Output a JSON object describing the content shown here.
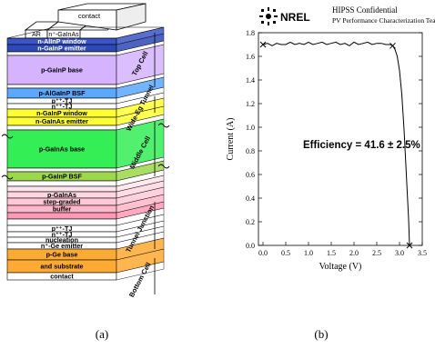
{
  "panel_a": {
    "caption": "(a)",
    "top_labels": {
      "contact": "contact",
      "ar": "AR",
      "cap": "n⁺-GaInAs"
    },
    "layers": [
      {
        "label": "n-AlInP window",
        "fill": "#3a55c8",
        "text": "#ffffff",
        "h": 7
      },
      {
        "label": "n-GaInP emitter",
        "fill": "#2f48b8",
        "text": "#ffffff",
        "h": 8
      },
      {
        "label": "",
        "fill": "#ffffff",
        "text": "#000000",
        "h": 4
      },
      {
        "label": "p-GaInP base",
        "fill": "#d5b3ff",
        "text": "#000000",
        "h": 32
      },
      {
        "label": "",
        "fill": "#ffffff",
        "text": "#000000",
        "h": 4
      },
      {
        "label": "p-AlGaInP BSF",
        "fill": "#5aa8ff",
        "text": "#000000",
        "h": 11
      },
      {
        "label": "p⁺⁺-TJ",
        "fill": "#ffffff",
        "text": "#000000",
        "h": 6
      },
      {
        "label": "n⁺⁺-TJ",
        "fill": "#ffffff",
        "text": "#000000",
        "h": 6
      },
      {
        "label": "n-GaInP window",
        "fill": "#ffff33",
        "text": "#000000",
        "h": 9
      },
      {
        "label": "n-GaInAs emitter",
        "fill": "#ffff33",
        "text": "#000000",
        "h": 9
      },
      {
        "label": "",
        "fill": "#ffffff",
        "text": "#000000",
        "h": 5
      },
      {
        "label": "p-GaInAs base",
        "fill": "#33ee55",
        "text": "#000000",
        "h": 42
      },
      {
        "label": "",
        "fill": "#ffffff",
        "text": "#000000",
        "h": 4
      },
      {
        "label": "p-GaInP BSF",
        "fill": "#9bd84a",
        "text": "#000000",
        "h": 10
      },
      {
        "label": "",
        "fill": "#ffffff",
        "text": "#000000",
        "h": 6
      },
      {
        "label": "",
        "fill": "#ffe4ec",
        "text": "#000000",
        "h": 6
      },
      {
        "label": "p-GaInAs",
        "fill": "#ffd7e2",
        "text": "#000000",
        "h": 7
      },
      {
        "label": "step-graded",
        "fill": "#ffc8d8",
        "text": "#000000",
        "h": 8
      },
      {
        "label": "buffer",
        "fill": "#ffb7cb",
        "text": "#000000",
        "h": 8
      },
      {
        "label": "",
        "fill": "#ff99b5",
        "text": "#000000",
        "h": 7
      },
      {
        "label": "",
        "fill": "#ffffff",
        "text": "#000000",
        "h": 7
      },
      {
        "label": "p⁺⁺-TJ",
        "fill": "#ffffff",
        "text": "#000000",
        "h": 7
      },
      {
        "label": "n⁺⁺-TJ",
        "fill": "#ffffff",
        "text": "#000000",
        "h": 6
      },
      {
        "label": "nucleation",
        "fill": "#ffffff",
        "text": "#000000",
        "h": 6
      },
      {
        "label": "n⁺-Ge emitter",
        "fill": "#ffffff",
        "text": "#000000",
        "h": 7
      },
      {
        "label": "p-Ge base",
        "fill": "#ffaa33",
        "text": "#000000",
        "h": 12
      },
      {
        "label": "and substrate",
        "fill": "#ffaa33",
        "text": "#000000",
        "h": 14
      },
      {
        "label": "contact",
        "fill": "#ffffff",
        "text": "#000000",
        "h": 8
      }
    ],
    "side_labels": [
      {
        "label": "Top Cell",
        "fill": "#3a55c8"
      },
      {
        "label": "Wide-Eg Tunnel",
        "fill": "#ffffff"
      },
      {
        "label": "Middle Cell",
        "fill": "#ffff33"
      },
      {
        "label": "Tunnel Junction",
        "fill": "#ffffff"
      },
      {
        "label": "Bottom Cell",
        "fill": "#ffaa33"
      }
    ]
  },
  "panel_b": {
    "caption": "(b)",
    "logo_text": "NREL",
    "header_line1": "HIPSS  Confidential",
    "header_line2": "PV Performance Characterization Team",
    "annotation": "Efficiency = 41.6 ± 2.5%",
    "chart_data": {
      "type": "line",
      "xlabel": "Voltage (V)",
      "ylabel": "Current (A)",
      "xlim": [
        -0.1,
        3.5
      ],
      "ylim": [
        0.0,
        1.8
      ],
      "xticks": [
        0.0,
        0.5,
        1.0,
        1.5,
        2.0,
        2.5,
        3.0,
        3.5
      ],
      "yticks": [
        0.0,
        0.2,
        0.4,
        0.6,
        0.8,
        1.0,
        1.2,
        1.4,
        1.6,
        1.8
      ],
      "xtick_labels": [
        "0.0",
        "0.5",
        "1.0",
        "1.5",
        "2.0",
        "2.5",
        "3.0",
        "3.5"
      ],
      "ytick_labels": [
        "0.0",
        "0.2",
        "0.4",
        "0.6",
        "0.8",
        "1.0",
        "1.2",
        "1.4",
        "1.6",
        "1.8"
      ],
      "series": [
        {
          "x": [
            0.0,
            0.1,
            0.2,
            0.3,
            0.4,
            0.5,
            0.6,
            0.7,
            0.8,
            0.9,
            1.0,
            1.1,
            1.2,
            1.3,
            1.4,
            1.5,
            1.6,
            1.7,
            1.8,
            1.9,
            2.0,
            2.1,
            2.2,
            2.3,
            2.4,
            2.5,
            2.6,
            2.7,
            2.8,
            2.85,
            2.9,
            2.95,
            3.0,
            3.05,
            3.1,
            3.15,
            3.2,
            3.22
          ],
          "y": [
            1.7,
            1.71,
            1.69,
            1.71,
            1.7,
            1.7,
            1.72,
            1.7,
            1.71,
            1.7,
            1.72,
            1.7,
            1.71,
            1.72,
            1.7,
            1.71,
            1.72,
            1.7,
            1.71,
            1.69,
            1.72,
            1.7,
            1.71,
            1.72,
            1.7,
            1.71,
            1.71,
            1.7,
            1.7,
            1.69,
            1.66,
            1.6,
            1.48,
            1.28,
            0.98,
            0.6,
            0.22,
            0.0
          ]
        }
      ],
      "markers": [
        {
          "x": 0.0,
          "y": 1.7
        },
        {
          "x": 2.85,
          "y": 1.69
        },
        {
          "x": 3.22,
          "y": 0.0
        }
      ]
    }
  }
}
